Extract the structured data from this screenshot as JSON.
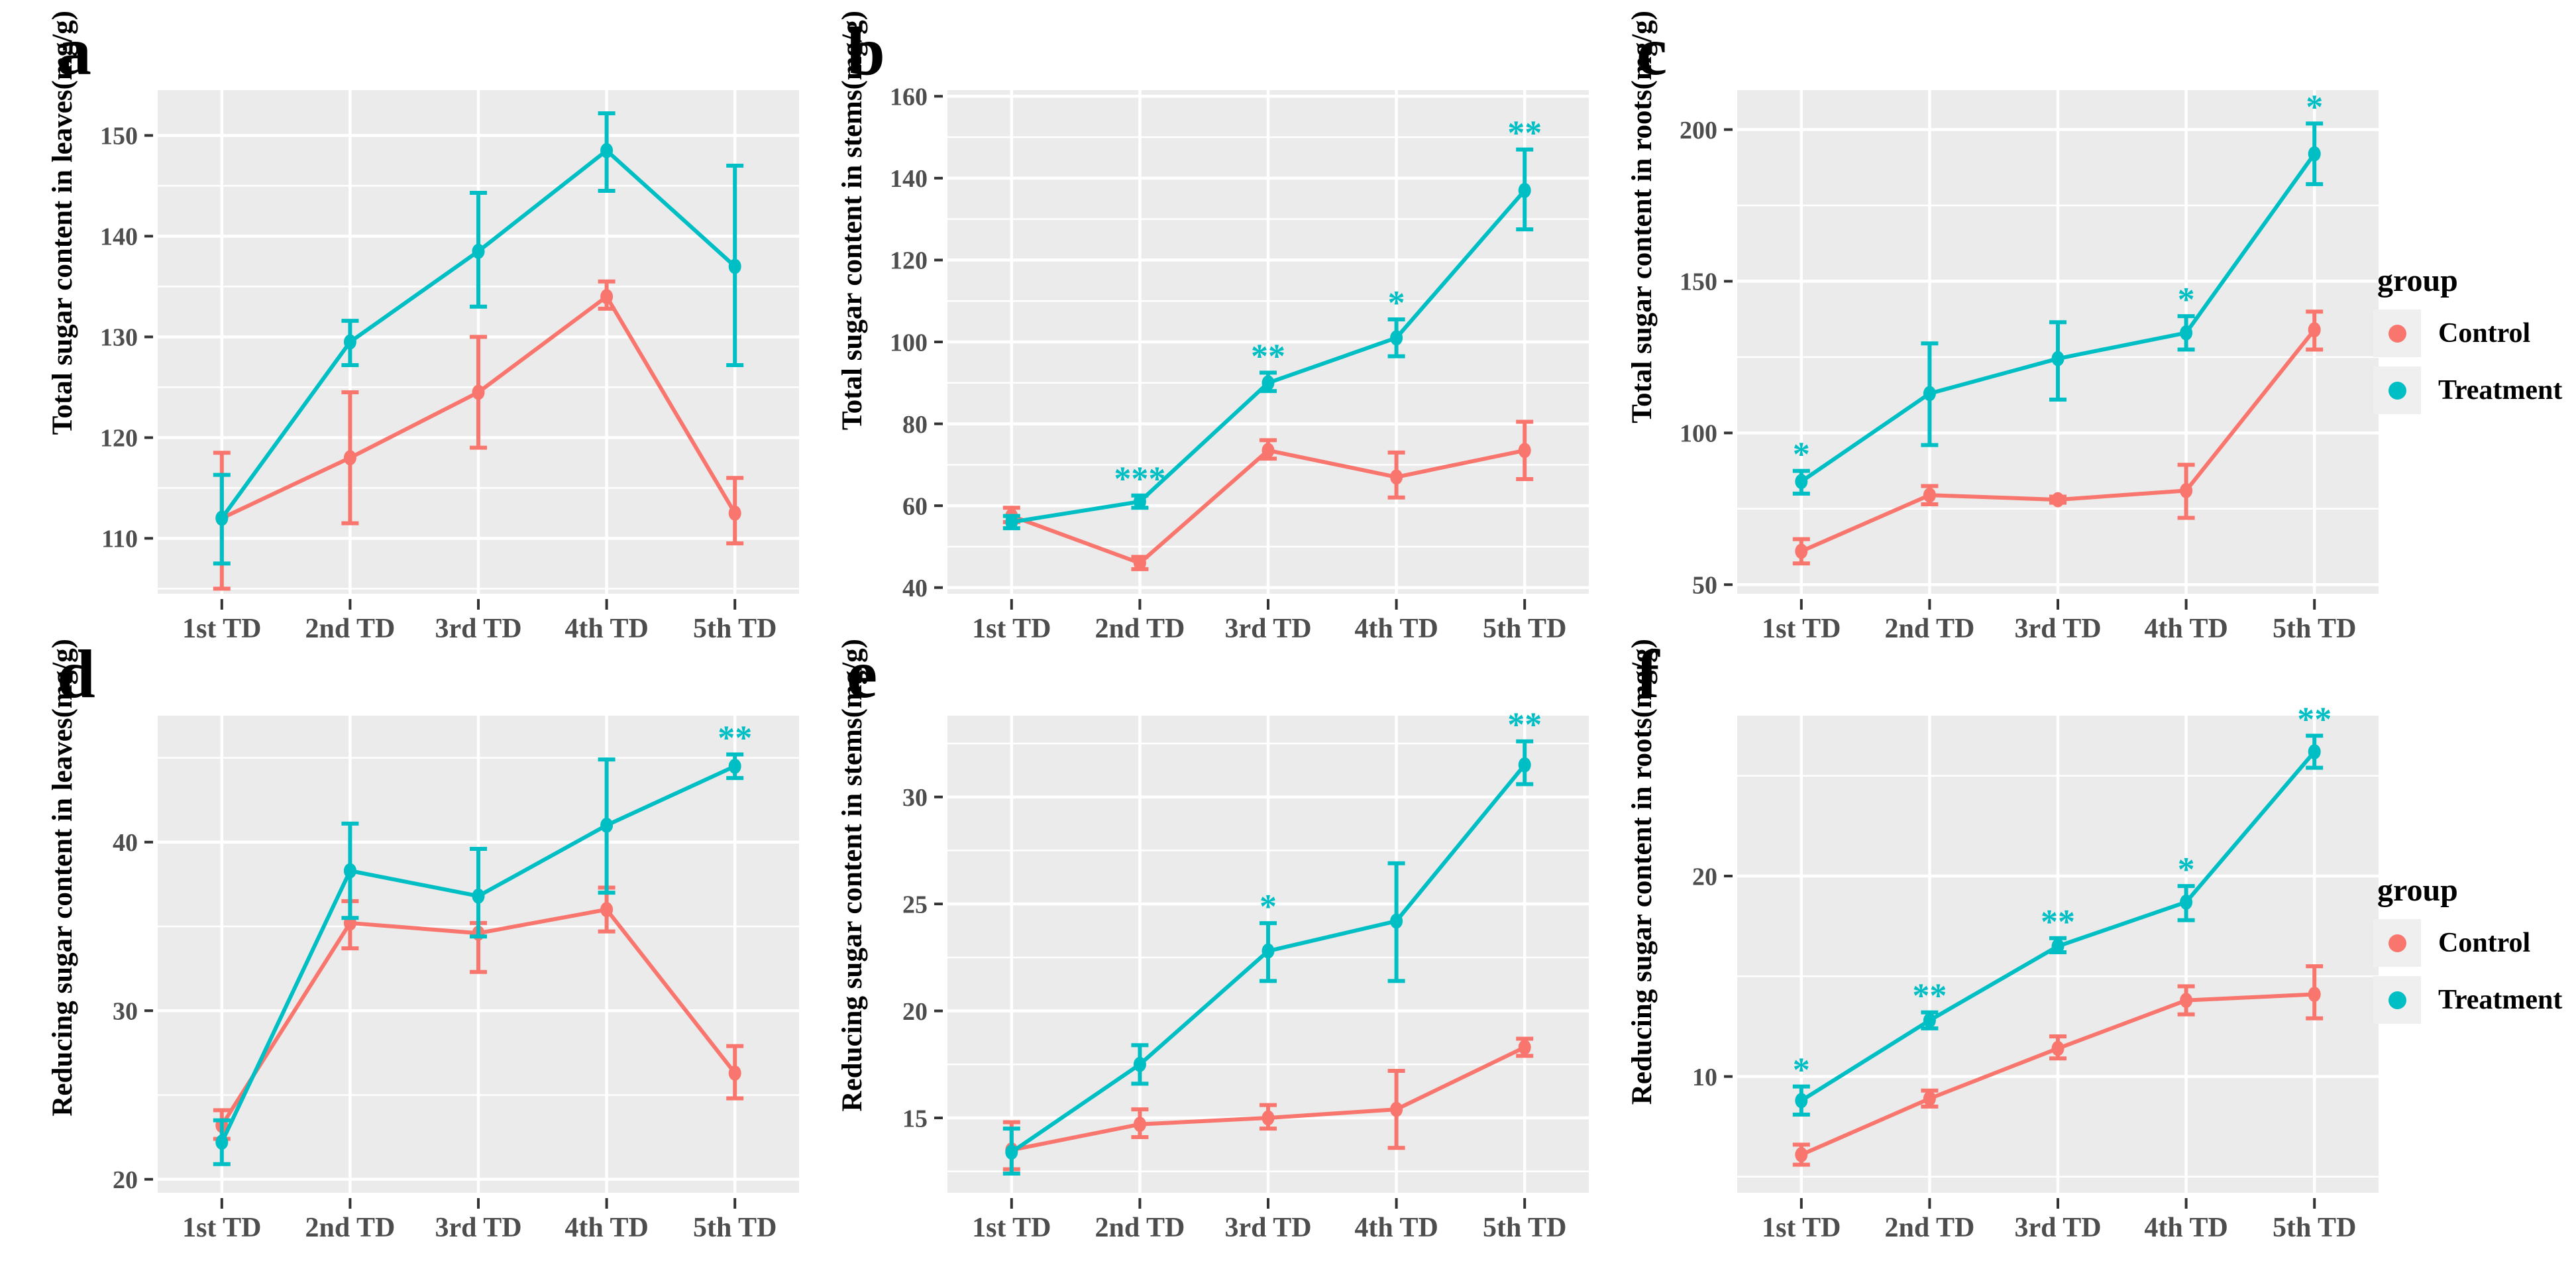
{
  "colors": {
    "control": "#F8766D",
    "treatment": "#00BFC4",
    "panel_bg": "#EBEBEB",
    "grid": "#FFFFFF",
    "tick_text": "#4D4D4D",
    "tick_mark": "#333333",
    "axis_text": "#000000",
    "legend_key_bg": "#EFEFEF",
    "star": "#00BFC4"
  },
  "legend": {
    "title": "group",
    "items": [
      {
        "label": "Control",
        "color_key": "control"
      },
      {
        "label": "Treatment",
        "color_key": "treatment"
      }
    ]
  },
  "chart_data": [
    {
      "letter": "a",
      "type": "line",
      "ylabel": "Total sugar content in leaves(mg/g)",
      "categories": [
        "1st TD",
        "2nd TD",
        "3rd TD",
        "4th TD",
        "5th TD"
      ],
      "ylim": [
        104.5,
        154.5
      ],
      "yticks": [
        110,
        120,
        130,
        140,
        150
      ],
      "yminor": [
        105,
        115,
        125,
        135,
        145
      ],
      "grid": true,
      "legend_position": "right",
      "series": [
        {
          "name": "Control",
          "color_key": "control",
          "values": [
            112,
            118,
            124.5,
            134,
            112.5
          ],
          "err_lo": [
            105,
            111.5,
            119,
            132.8,
            109.5
          ],
          "err_hi": [
            118.5,
            124.5,
            130,
            135.5,
            116
          ]
        },
        {
          "name": "Treatment",
          "color_key": "treatment",
          "values": [
            112,
            129.5,
            138.5,
            148.5,
            137
          ],
          "err_lo": [
            107.5,
            127.2,
            133,
            144.5,
            127.2
          ],
          "err_hi": [
            116.3,
            131.6,
            144.3,
            152.2,
            147
          ]
        }
      ],
      "annotations": []
    },
    {
      "letter": "b",
      "type": "line",
      "ylabel": "Total sugar content in stems(mg/g)",
      "categories": [
        "1st TD",
        "2nd TD",
        "3rd TD",
        "4th TD",
        "5th TD"
      ],
      "ylim": [
        38.5,
        161.5
      ],
      "yticks": [
        40,
        60,
        80,
        100,
        120,
        140,
        160
      ],
      "yminor": [
        50,
        70,
        90,
        110,
        130,
        150
      ],
      "grid": true,
      "legend_position": "right",
      "series": [
        {
          "name": "Control",
          "color_key": "control",
          "values": [
            57.5,
            46,
            73.5,
            67,
            73.5
          ],
          "err_lo": [
            56,
            44.5,
            71.5,
            62,
            66.5
          ],
          "err_hi": [
            59.5,
            47.5,
            76,
            73,
            80.5
          ]
        },
        {
          "name": "Treatment",
          "color_key": "treatment",
          "values": [
            56,
            61,
            90,
            101,
            137
          ],
          "err_lo": [
            54.5,
            59.5,
            88,
            96.5,
            127.5
          ],
          "err_hi": [
            57.5,
            62.5,
            92.5,
            105.5,
            147
          ]
        }
      ],
      "annotations": [
        {
          "category": "2nd TD",
          "text": "***"
        },
        {
          "category": "3rd TD",
          "text": "**"
        },
        {
          "category": "4th TD",
          "text": "*"
        },
        {
          "category": "5th TD",
          "text": "**"
        }
      ]
    },
    {
      "letter": "c",
      "type": "line",
      "ylabel": "Total sugar content in roots(mg/g)",
      "categories": [
        "1st TD",
        "2nd TD",
        "3rd TD",
        "4th TD",
        "5th TD"
      ],
      "ylim": [
        47,
        213
      ],
      "yticks": [
        50,
        100,
        150,
        200
      ],
      "yminor": [
        75,
        125,
        175
      ],
      "grid": true,
      "legend_position": "right",
      "series": [
        {
          "name": "Control",
          "color_key": "control",
          "values": [
            61,
            79.5,
            78,
            81,
            134
          ],
          "err_lo": [
            57,
            76.5,
            77,
            72,
            127.5
          ],
          "err_hi": [
            65,
            82.5,
            79,
            89.5,
            140
          ]
        },
        {
          "name": "Treatment",
          "color_key": "treatment",
          "values": [
            84,
            113,
            124.5,
            133,
            192
          ],
          "err_lo": [
            80,
            96,
            111,
            127.5,
            182
          ],
          "err_hi": [
            87.5,
            129.5,
            136.5,
            138.5,
            202
          ]
        }
      ],
      "annotations": [
        {
          "category": "1st TD",
          "text": "*"
        },
        {
          "category": "4th TD",
          "text": "*"
        },
        {
          "category": "5th TD",
          "text": "*"
        }
      ]
    },
    {
      "letter": "d",
      "type": "line",
      "ylabel": "Reducing sugar content in leaves(mg/g)",
      "categories": [
        "1st TD",
        "2nd TD",
        "3rd TD",
        "4th TD",
        "5th TD"
      ],
      "ylim": [
        19.2,
        47.5
      ],
      "yticks": [
        20,
        30,
        40
      ],
      "yminor": [
        25,
        35,
        45
      ],
      "grid": true,
      "legend_position": "right",
      "series": [
        {
          "name": "Control",
          "color_key": "control",
          "values": [
            23.2,
            35.2,
            34.6,
            36,
            26.3
          ],
          "err_lo": [
            22.4,
            33.7,
            32.3,
            34.7,
            24.8
          ],
          "err_hi": [
            24.1,
            36.5,
            35.2,
            37.3,
            27.9
          ]
        },
        {
          "name": "Treatment",
          "color_key": "treatment",
          "values": [
            22.2,
            38.3,
            36.8,
            41,
            44.5
          ],
          "err_lo": [
            20.9,
            35.5,
            34.4,
            37,
            43.8
          ],
          "err_hi": [
            23.5,
            41.1,
            39.6,
            44.9,
            45.2
          ]
        }
      ],
      "annotations": [
        {
          "category": "5th TD",
          "text": "**"
        }
      ]
    },
    {
      "letter": "e",
      "type": "line",
      "ylabel": "Reducing sugar content in stems(mg/g)",
      "categories": [
        "1st TD",
        "2nd TD",
        "3rd TD",
        "4th TD",
        "5th TD"
      ],
      "ylim": [
        11.5,
        33.8
      ],
      "yticks": [
        15,
        20,
        25,
        30
      ],
      "yminor": [
        12.5,
        17.5,
        22.5,
        27.5,
        32.5
      ],
      "grid": true,
      "legend_position": "right",
      "series": [
        {
          "name": "Control",
          "color_key": "control",
          "values": [
            13.5,
            14.7,
            15.0,
            15.4,
            18.3
          ],
          "err_lo": [
            12.6,
            14.1,
            14.5,
            13.6,
            17.9
          ],
          "err_hi": [
            14.8,
            15.4,
            15.6,
            17.2,
            18.7
          ]
        },
        {
          "name": "Treatment",
          "color_key": "treatment",
          "values": [
            13.4,
            17.5,
            22.8,
            24.2,
            31.5
          ],
          "err_lo": [
            12.4,
            16.6,
            21.4,
            21.4,
            30.6
          ],
          "err_hi": [
            14.5,
            18.4,
            24.1,
            26.9,
            32.6
          ]
        }
      ],
      "annotations": [
        {
          "category": "3rd TD",
          "text": "*"
        },
        {
          "category": "5th TD",
          "text": "**"
        }
      ]
    },
    {
      "letter": "f",
      "type": "line",
      "ylabel": "Reducing sugar content in roots(mg/g)",
      "categories": [
        "1st TD",
        "2nd TD",
        "3rd TD",
        "4th TD",
        "5th TD"
      ],
      "ylim": [
        4.2,
        28
      ],
      "yticks": [
        10,
        20
      ],
      "yminor": [
        5,
        15,
        25
      ],
      "grid": true,
      "legend_position": "right",
      "series": [
        {
          "name": "Control",
          "color_key": "control",
          "values": [
            6.1,
            8.9,
            11.4,
            13.8,
            14.1
          ],
          "err_lo": [
            5.6,
            8.5,
            10.9,
            13.1,
            12.9
          ],
          "err_hi": [
            6.6,
            9.3,
            12.0,
            14.5,
            15.5
          ]
        },
        {
          "name": "Treatment",
          "color_key": "treatment",
          "values": [
            8.8,
            12.8,
            16.5,
            18.7,
            26.2
          ],
          "err_lo": [
            8.1,
            12.4,
            16.2,
            17.8,
            25.4
          ],
          "err_hi": [
            9.5,
            13.2,
            16.9,
            19.5,
            27.0
          ]
        }
      ],
      "annotations": [
        {
          "category": "1st TD",
          "text": "*"
        },
        {
          "category": "2nd TD",
          "text": "**"
        },
        {
          "category": "3rd TD",
          "text": "**"
        },
        {
          "category": "4th TD",
          "text": "*"
        },
        {
          "category": "5th TD",
          "text": "**"
        }
      ]
    }
  ]
}
